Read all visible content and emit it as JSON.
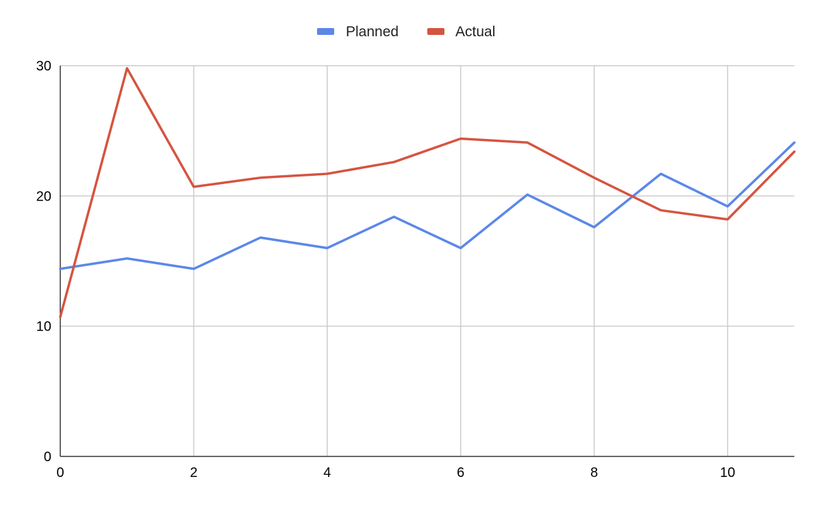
{
  "chart_data": {
    "type": "line",
    "x": [
      0,
      1,
      2,
      3,
      4,
      5,
      6,
      7,
      8,
      9,
      10,
      11
    ],
    "series": [
      {
        "name": "Planned",
        "color": "#5b87e8",
        "values": [
          14.4,
          15.2,
          14.4,
          16.8,
          16.0,
          18.4,
          16.0,
          20.1,
          17.6,
          21.7,
          19.2,
          24.1
        ]
      },
      {
        "name": "Actual",
        "color": "#d55440",
        "values": [
          10.7,
          29.8,
          20.7,
          21.4,
          21.7,
          22.6,
          24.4,
          24.1,
          21.4,
          18.9,
          18.2,
          23.4
        ]
      }
    ],
    "xlim": [
      0,
      11
    ],
    "ylim": [
      0,
      30
    ],
    "xticks": [
      0,
      2,
      4,
      6,
      8,
      10
    ],
    "yticks": [
      0,
      10,
      20,
      30
    ],
    "grid": true,
    "legend_position": "top-center",
    "title": "",
    "xlabel": "",
    "ylabel": ""
  }
}
